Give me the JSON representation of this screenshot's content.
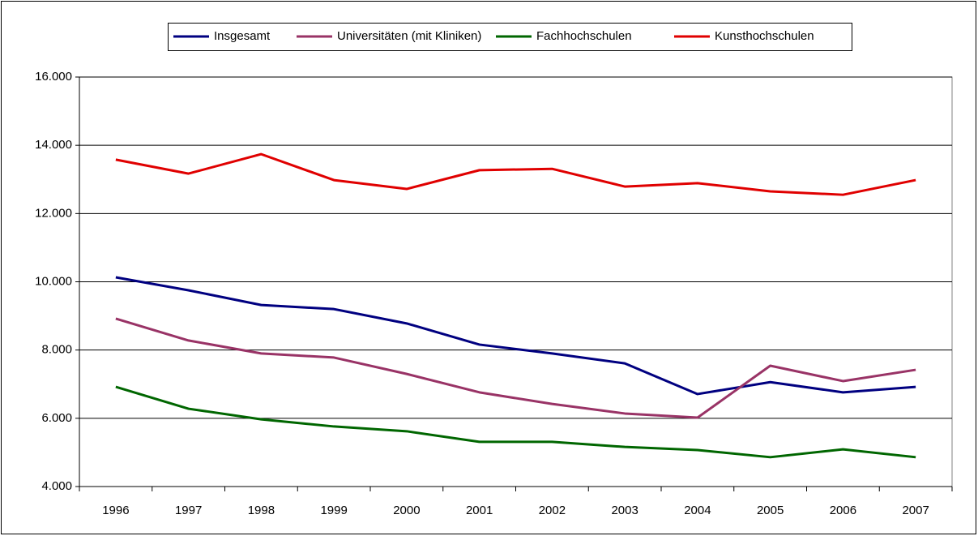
{
  "chart_data": {
    "type": "line",
    "categories": [
      "1996",
      "1997",
      "1998",
      "1999",
      "2000",
      "2001",
      "2002",
      "2003",
      "2004",
      "2005",
      "2006",
      "2007"
    ],
    "series": [
      {
        "name": "Insgesamt",
        "color": "#000080",
        "values": [
          10130,
          9750,
          9320,
          9200,
          8780,
          8160,
          7900,
          7610,
          6710,
          7060,
          6760,
          6920
        ]
      },
      {
        "name": "Universitäten (mit Kliniken)",
        "color": "#993366",
        "values": [
          8920,
          8280,
          7900,
          7780,
          7300,
          6760,
          6420,
          6140,
          6020,
          7540,
          7090,
          7420
        ]
      },
      {
        "name": "Fachhochschulen",
        "color": "#006600",
        "values": [
          6920,
          6280,
          5970,
          5760,
          5620,
          5310,
          5310,
          5160,
          5070,
          4860,
          5090,
          4860
        ]
      },
      {
        "name": "Kunsthochschulen",
        "color": "#e00000",
        "values": [
          13580,
          13170,
          13740,
          12980,
          12720,
          13270,
          13310,
          12790,
          12890,
          12650,
          12550,
          12980
        ]
      }
    ],
    "ylim": [
      4000,
      16000
    ],
    "yticks": [
      {
        "value": 4000,
        "label": "4.000"
      },
      {
        "value": 6000,
        "label": "6.000"
      },
      {
        "value": 8000,
        "label": "8.000"
      },
      {
        "value": 10000,
        "label": "10.000"
      },
      {
        "value": 12000,
        "label": "12.000"
      },
      {
        "value": 14000,
        "label": "14.000"
      },
      {
        "value": 16000,
        "label": "16.000"
      }
    ],
    "grid": true,
    "legend": "top"
  }
}
